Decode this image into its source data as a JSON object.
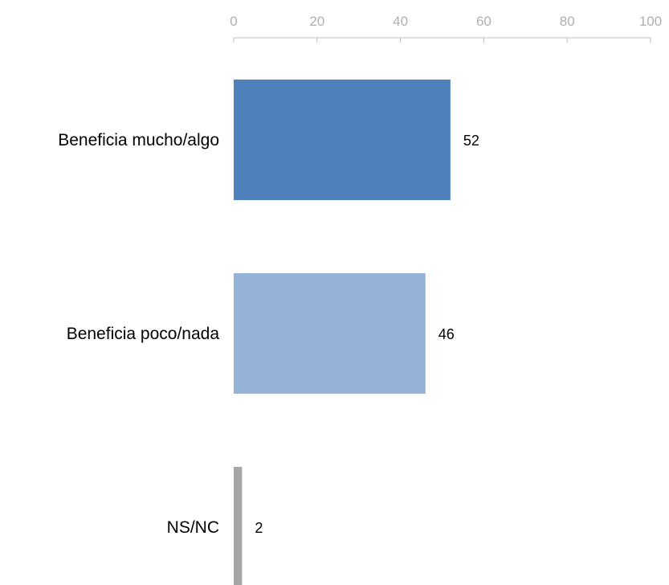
{
  "chart_data": {
    "type": "bar",
    "orientation": "horizontal",
    "categories": [
      "Beneficia mucho/algo",
      "Beneficia poco/nada",
      "NS/NC"
    ],
    "values": [
      52,
      46,
      2
    ],
    "data_labels": [
      "52",
      "46",
      "2"
    ],
    "colors": [
      "#4f81bd",
      "#95b3d7",
      "#a6a6a6"
    ],
    "xlim": [
      0,
      100
    ],
    "ticks": [
      0,
      20,
      40,
      60,
      80,
      100
    ],
    "tick_labels": [
      "0",
      "20",
      "40",
      "60",
      "80",
      "100"
    ],
    "axis_position": "top",
    "grid": false,
    "legend": "none",
    "title": "",
    "xlabel": "",
    "ylabel": ""
  }
}
